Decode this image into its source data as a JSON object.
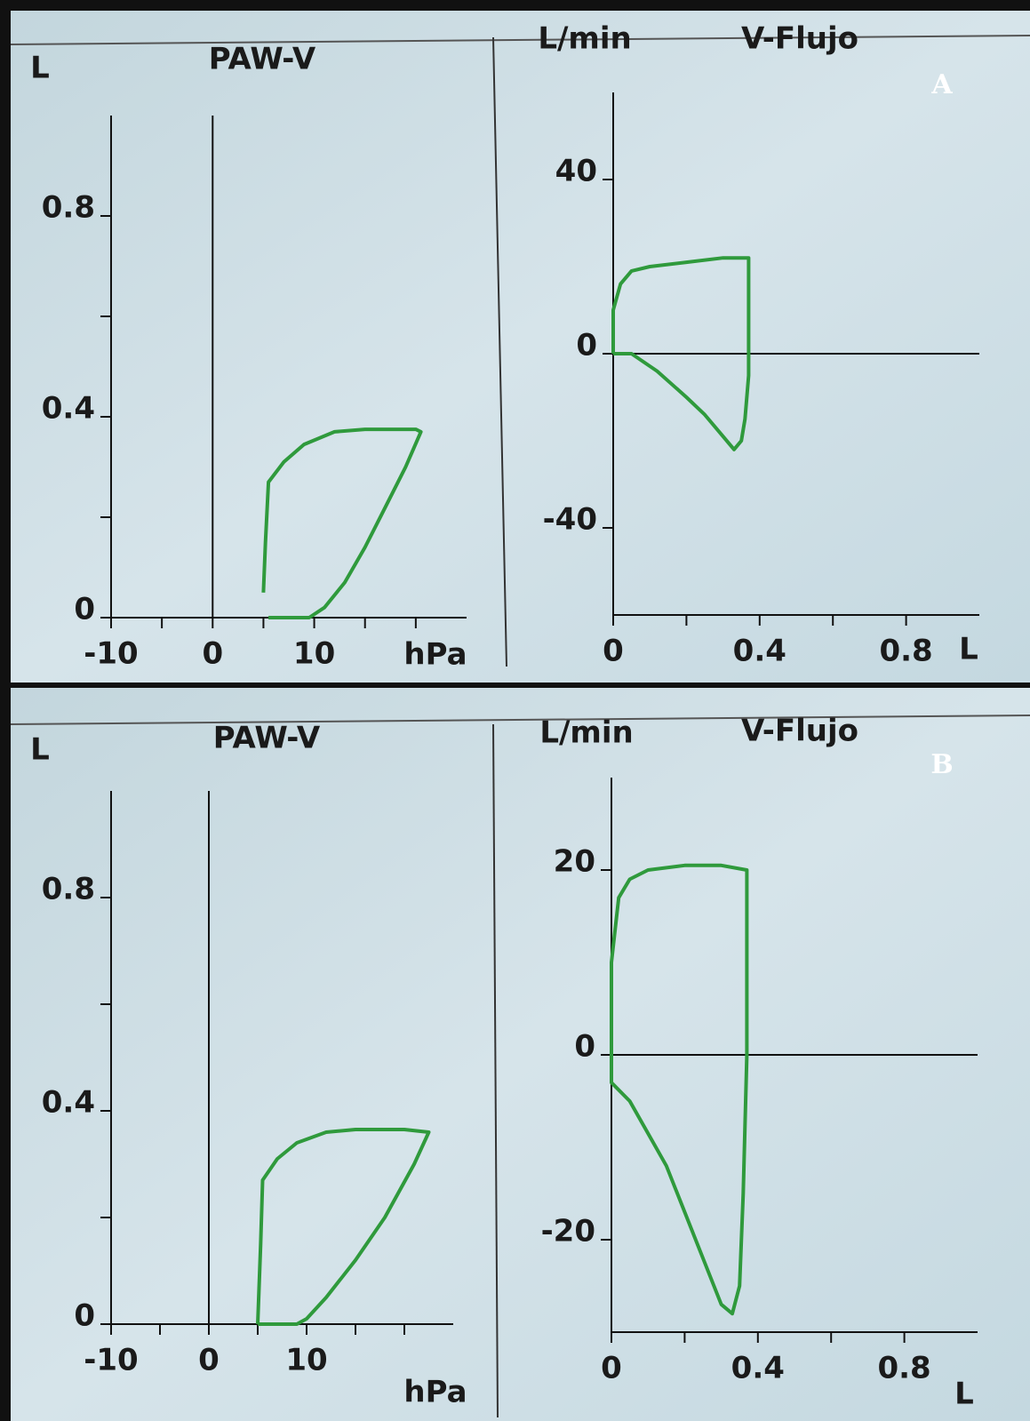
{
  "chart_data": [
    {
      "type": "line",
      "title": "PAW-V",
      "ylabel": "L",
      "xlabel": "hPa",
      "x": [
        5,
        5.2,
        5.5,
        7,
        9,
        12,
        15,
        20,
        20.5,
        19,
        17,
        15,
        13,
        11,
        9.5,
        5.5
      ],
      "values": [
        0.05,
        0.15,
        0.27,
        0.31,
        0.345,
        0.37,
        0.375,
        0.375,
        0.37,
        0.3,
        0.22,
        0.14,
        0.07,
        0.02,
        0,
        0
      ],
      "color": "#2f9a3c",
      "xlim": [
        -10,
        25
      ],
      "ylim": [
        0,
        1.0
      ],
      "xticks": [
        -10,
        0,
        10
      ],
      "yticks": [
        0,
        0.4,
        0.8
      ],
      "minor_xticks": [
        -5,
        5,
        15,
        20
      ],
      "minor_yticks": [
        0.2,
        0.6
      ],
      "zero_lines": true
    },
    {
      "type": "line",
      "title": "V-Flujo",
      "ylabel": "L/min",
      "xlabel": "L",
      "panel_label": "A",
      "x": [
        0,
        0,
        0.02,
        0.05,
        0.1,
        0.2,
        0.3,
        0.37,
        0.37,
        0.37,
        0.36,
        0.35,
        0.33,
        0.3,
        0.25,
        0.2,
        0.12,
        0.05,
        0
      ],
      "values": [
        0,
        10,
        16,
        19,
        20,
        21,
        22,
        22,
        10,
        -5,
        -15,
        -20,
        -22,
        -19,
        -14,
        -10,
        -4,
        0,
        0
      ],
      "color": "#2f9a3c",
      "xlim": [
        0,
        1.0
      ],
      "ylim": [
        -60,
        60
      ],
      "xticks": [
        0,
        0.4,
        0.8
      ],
      "yticks": [
        -40,
        0,
        40
      ],
      "minor_xticks": [
        0.2,
        0.6
      ],
      "minor_yticks": [],
      "zero_lines": true
    },
    {
      "type": "line",
      "title": "PAW-V",
      "ylabel": "L",
      "xlabel": "hPa",
      "x": [
        5,
        5.3,
        5.5,
        7,
        9,
        12,
        15,
        20,
        22.5,
        21,
        18,
        15,
        12,
        10,
        9,
        5
      ],
      "values": [
        0,
        0.15,
        0.27,
        0.31,
        0.34,
        0.36,
        0.365,
        0.365,
        0.36,
        0.3,
        0.2,
        0.12,
        0.05,
        0.01,
        0,
        0
      ],
      "color": "#2f9a3c",
      "xlim": [
        -10,
        25
      ],
      "ylim": [
        0,
        1.0
      ],
      "xticks": [
        -10,
        0,
        10
      ],
      "yticks": [
        0,
        0.4,
        0.8
      ],
      "minor_xticks": [
        -5,
        5,
        15,
        20
      ],
      "minor_yticks": [
        0.2,
        0.6
      ],
      "zero_lines": true
    },
    {
      "type": "line",
      "title": "V-Flujo",
      "ylabel": "L/min",
      "xlabel": "L",
      "panel_label": "B",
      "x": [
        0,
        0,
        0.02,
        0.05,
        0.1,
        0.2,
        0.3,
        0.37,
        0.37,
        0.37,
        0.36,
        0.35,
        0.33,
        0.3,
        0.25,
        0.15,
        0.05,
        0,
        0
      ],
      "values": [
        0,
        10,
        17,
        19,
        20,
        20.5,
        20.5,
        20,
        10,
        0,
        -15,
        -25,
        -28,
        -27,
        -22,
        -12,
        -5,
        -3,
        0
      ],
      "color": "#2f9a3c",
      "xlim": [
        0,
        1.0
      ],
      "ylim": [
        -30,
        30
      ],
      "xticks": [
        0,
        0.4,
        0.8
      ],
      "yticks": [
        -20,
        0,
        20
      ],
      "minor_xticks": [
        0.2,
        0.6
      ],
      "minor_yticks": [],
      "zero_lines": true
    }
  ]
}
